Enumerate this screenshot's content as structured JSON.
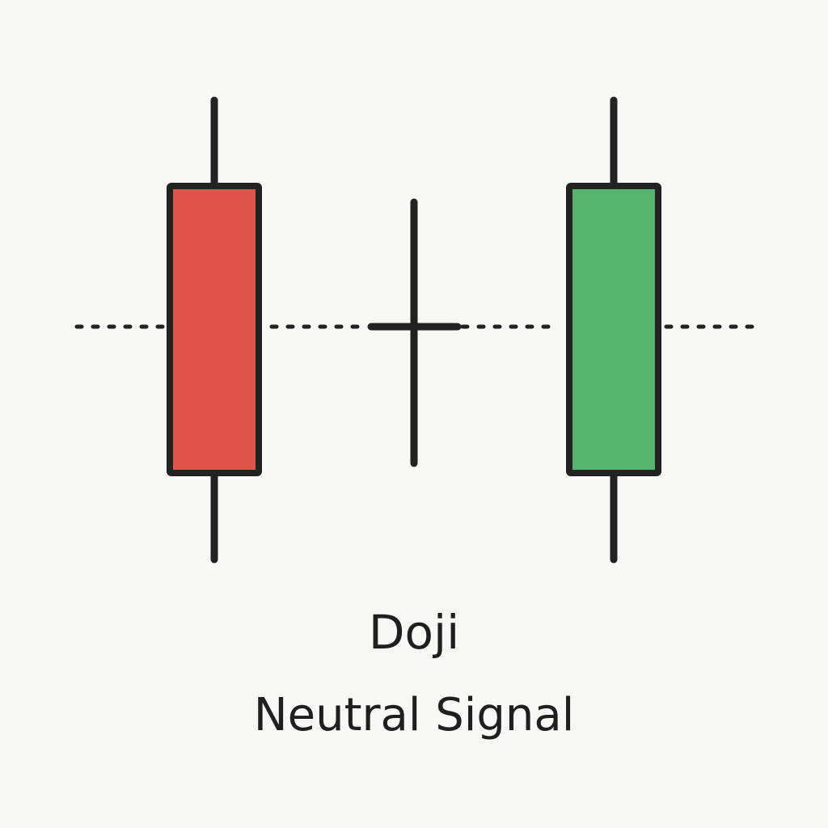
{
  "title": "Doji",
  "subtitle": "Neutral Signal",
  "colors": {
    "background": "#f8f8f7",
    "stroke": "#222222",
    "bearish_body": "#e0544a",
    "bullish_body": "#56b56d"
  },
  "candles": [
    {
      "role": "bearish",
      "fill": "bearish_body"
    },
    {
      "role": "doji",
      "fill": "none"
    },
    {
      "role": "bullish",
      "fill": "bullish_body"
    }
  ],
  "reference_line": "dotted"
}
